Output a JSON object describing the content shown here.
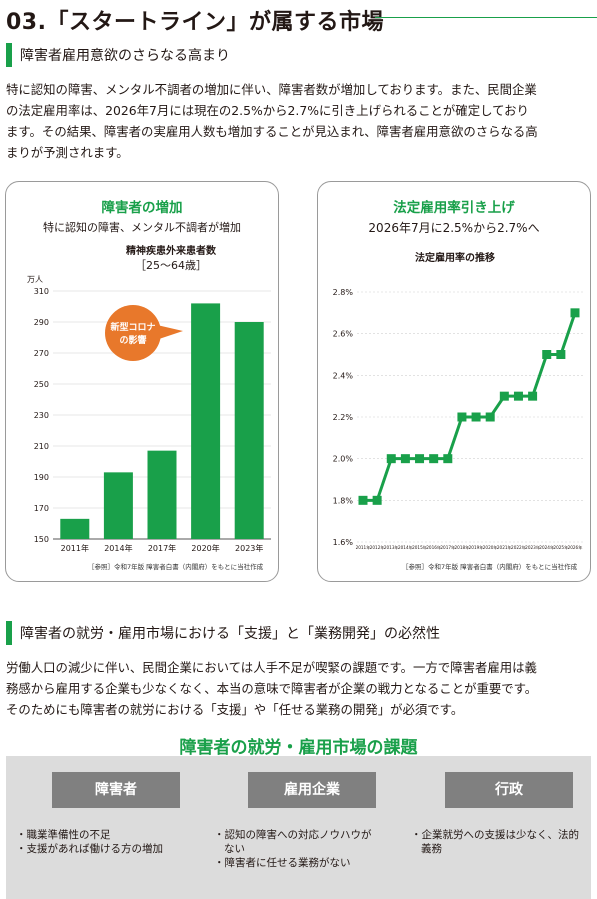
{
  "page": {
    "title": "03.「スタートライン」が属する市場"
  },
  "section1": {
    "heading": "障害者雇用意欲のさらなる高まり",
    "lines": [
      "特に認知の障害、メンタル不調者の増加に伴い、障害者数が増加しております。また、民間企業",
      "の法定雇用率は、2026年7月には現在の2.5%から2.7%に引き上げられることが確定しており",
      "ます。その結果、障害者の実雇用人数も増加することが見込まれ、障害者雇用意欲のさらなる高",
      "まりが予測されます。"
    ]
  },
  "card_left": {
    "title": "障害者の増加",
    "subtitle": "特に認知の障害、メンタル不調者が増加",
    "chart_title_1": "精神疾患外来患者数",
    "chart_title_2": "［25～64歳］",
    "unit": "万人",
    "callout": [
      "新型コロナ",
      "の影響"
    ],
    "source": "［参照］令和7年版 障害者白書（内閣府）をもとに当社作成"
  },
  "card_right": {
    "title": "法定雇用率引き上げ",
    "subtitle": "2026年7月に2.5%から2.7%へ",
    "chart_title": "法定雇用率の推移",
    "source": "［参照］令和7年版 障害者白書（内閣府）をもとに当社作成"
  },
  "chart_data": [
    {
      "type": "bar",
      "title": "精神疾患外来患者数［25～64歳］",
      "ylabel": "万人",
      "categories": [
        "2011年",
        "2014年",
        "2017年",
        "2020年",
        "2023年"
      ],
      "values": [
        163,
        193,
        207,
        302,
        290
      ],
      "ylim": [
        150,
        310
      ],
      "yticks": [
        150,
        170,
        190,
        210,
        230,
        250,
        270,
        290,
        310
      ],
      "grid": true,
      "color": "#19a04a"
    },
    {
      "type": "line",
      "title": "法定雇用率の推移",
      "x": [
        "2011年",
        "2012年",
        "2013年",
        "2014年",
        "2015年",
        "2016年",
        "2017年",
        "2018年",
        "2019年",
        "2020年",
        "2021年",
        "2022年",
        "2023年",
        "2024年",
        "2025年",
        "2026年"
      ],
      "values": [
        1.8,
        1.8,
        2.0,
        2.0,
        2.0,
        2.0,
        2.0,
        2.2,
        2.2,
        2.2,
        2.3,
        2.3,
        2.3,
        2.5,
        2.5,
        2.7
      ],
      "ylim": [
        1.6,
        2.8
      ],
      "yticks": [
        "1.6%",
        "1.8%",
        "2.0%",
        "2.2%",
        "2.4%",
        "2.6%",
        "2.8%"
      ],
      "grid": true,
      "color": "#19a04a"
    }
  ],
  "section2": {
    "heading": "障害者の就労・雇用市場における「支援」と「業務開発」の必然性",
    "lines": [
      "労働人口の減少に伴い、民間企業においては人手不足が喫緊の課題です。一方で障害者雇用は義",
      "務感から雇用する企業も少なくなく、本当の意味で障害者が企業の戦力となることが重要です。",
      "そのためにも障害者の就労における「支援」や「任せる業務の開発」が必須です。"
    ]
  },
  "issues": {
    "title": "障害者の就労・雇用市場の課題",
    "columns": [
      {
        "head": "障害者",
        "items": [
          "職業準備性の不足",
          "支援があれば働ける方の増加"
        ]
      },
      {
        "head": "雇用企業",
        "items": [
          "認知の障害への対応ノウハウがない",
          "障害者に任せる業務がない"
        ]
      },
      {
        "head": "行政",
        "items": [
          "企業就労への支援は少なく、法的義務"
        ]
      }
    ]
  }
}
